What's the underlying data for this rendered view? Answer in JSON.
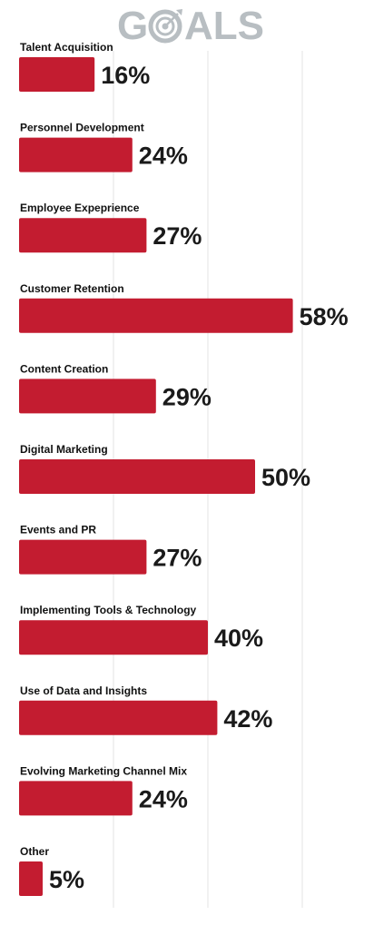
{
  "header": {
    "title_left": "G",
    "title_right": "ALS",
    "icon": "target-icon",
    "title_color": "#b8bec2"
  },
  "chart_data": {
    "type": "bar",
    "orientation": "horizontal",
    "title": "GOALS",
    "categories": [
      "Talent Acquisition",
      "Personnel Development",
      "Employee Expeprience",
      "Customer Retention",
      "Content Creation",
      "Digital Marketing",
      "Events and PR",
      "Implementing Tools & Technology",
      "Use of Data and Insights",
      "Evolving Marketing Channel Mix",
      "Other"
    ],
    "values": [
      16,
      24,
      27,
      58,
      29,
      50,
      27,
      40,
      42,
      24,
      5
    ],
    "value_labels": [
      "16%",
      "24%",
      "27%",
      "58%",
      "29%",
      "50%",
      "27%",
      "40%",
      "42%",
      "24%",
      "5%"
    ],
    "xlim": [
      0,
      60
    ],
    "grid": true,
    "bar_color": "#c31c30"
  }
}
